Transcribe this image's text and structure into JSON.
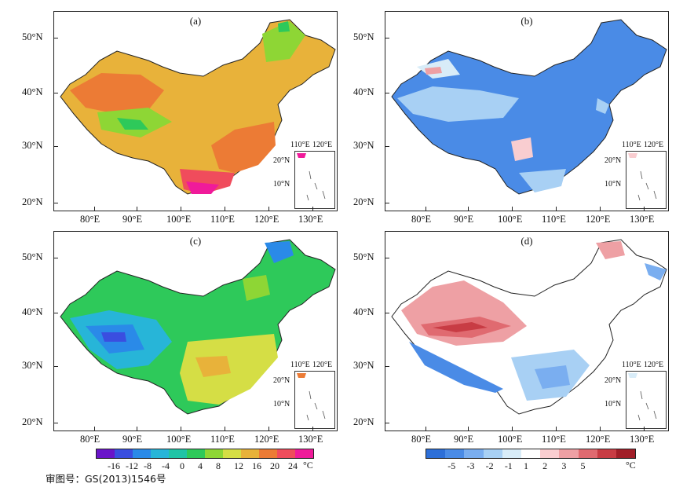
{
  "panels": {
    "a": {
      "label": "(a)"
    },
    "b": {
      "label": "(b)"
    },
    "c": {
      "label": "(c)"
    },
    "d": {
      "label": "(d)"
    }
  },
  "axes": {
    "lon_ticks": [
      "80°E",
      "90°E",
      "100°E",
      "110°E",
      "120°E",
      "130°E"
    ],
    "lat_ticks": [
      "50°N",
      "40°N",
      "30°N",
      "20°N"
    ]
  },
  "inset": {
    "lon_ticks": [
      "110°E",
      "120°E"
    ],
    "lat_ticks": [
      "20°N",
      "10°N"
    ]
  },
  "colorbar_left": {
    "labels": [
      "-16",
      "-12",
      "-8",
      "-4",
      "0",
      "4",
      "8",
      "12",
      "16",
      "20",
      "24"
    ],
    "unit": "°C",
    "colors": [
      "#6a14c9",
      "#3a4ee0",
      "#2a8ae8",
      "#27b5d8",
      "#20c4a6",
      "#2ec95a",
      "#8ed635",
      "#d5de45",
      "#e8b23a",
      "#ec7b35",
      "#f04c5c",
      "#f01a9a"
    ]
  },
  "colorbar_right": {
    "labels": [
      "-5",
      "-3",
      "-2",
      "-1",
      "1",
      "2",
      "3",
      "5"
    ],
    "unit": "°C",
    "colors": [
      "#2d6fd8",
      "#4a8be6",
      "#7aaef0",
      "#a8d0f4",
      "#d8ecf8",
      "#ffffff",
      "#f9cdd0",
      "#eea0a4",
      "#e06a70",
      "#c83c44",
      "#a11e28"
    ]
  },
  "footer": {
    "text": "审图号：GS(2013)1546号"
  }
}
